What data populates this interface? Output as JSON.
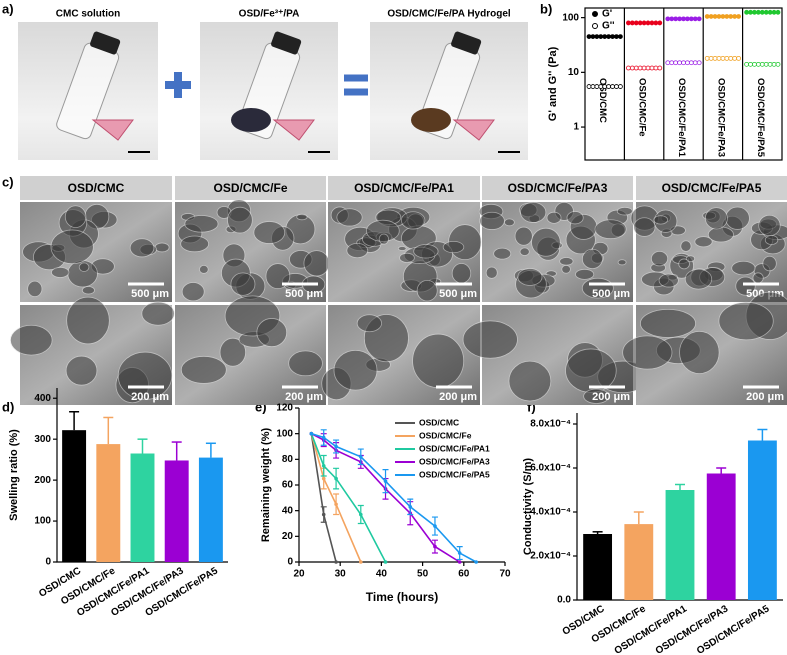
{
  "figure": {
    "panel_labels": [
      "a)",
      "b)",
      "c)",
      "d)",
      "e)",
      "f)"
    ],
    "photo_captions": [
      "CMC solution",
      "OSD/Fe³⁺/PA",
      "OSD/CMC/Fe/PA Hydrogel"
    ],
    "sem_headers": [
      "OSD/CMC",
      "OSD/CMC/Fe",
      "OSD/CMC/Fe/PA1",
      "OSD/CMC/Fe/PA3",
      "OSD/CMC/Fe/PA5"
    ],
    "scale_bars": [
      "500 μm",
      "200 μm"
    ]
  },
  "chart_data": [
    {
      "type": "dot",
      "y_label": "G' and G'' (Pa)",
      "log_y": true,
      "categories": [
        "OSD/CMC",
        "OSD/CMC/Fe",
        "OSD/CMC/Fe/PA1",
        "OSD/CMC/Fe/PA3",
        "OSD/CMC/Fe/PA5"
      ],
      "colors": [
        "#000000",
        "#e8001c",
        "#9a1ee6",
        "#f0a020",
        "#20c830"
      ],
      "series": [
        {
          "name": "G'",
          "marker": "filled",
          "values": [
            45,
            80,
            95,
            105,
            125
          ]
        },
        {
          "name": "G''",
          "marker": "open",
          "values": [
            5.5,
            12,
            15,
            18,
            14
          ]
        }
      ],
      "ylim": [
        0.25,
        150
      ],
      "yticks": [
        1,
        10,
        100
      ],
      "legend": "upper-left"
    },
    {
      "type": "bar",
      "y_label": "Swelling ratio (%)",
      "categories": [
        "OSD/CMC",
        "OSD/CMC/Fe",
        "OSD/CMC/Fe/PA1",
        "OSD/CMC/Fe/PA3",
        "OSD/CMC/Fe/PA5"
      ],
      "values": [
        322,
        288,
        265,
        248,
        255
      ],
      "errors": [
        45,
        65,
        35,
        45,
        35
      ],
      "colors": [
        "#000000",
        "#f4a460",
        "#2ed3a0",
        "#9b00d3",
        "#1a98f0"
      ],
      "ylim": [
        0,
        425
      ],
      "yticks": [
        0,
        100,
        200,
        300,
        400
      ]
    },
    {
      "type": "line",
      "x_label": "Time (hours)",
      "y_label": "Remaining weight (%)",
      "series": [
        {
          "name": "OSD/CMC",
          "color": "#555555",
          "x": [
            23,
            26,
            29
          ],
          "values": [
            100,
            37,
            0
          ],
          "errors": [
            0,
            6,
            0
          ]
        },
        {
          "name": "OSD/CMC/Fe",
          "color": "#f4a460",
          "x": [
            23,
            26,
            29,
            35
          ],
          "values": [
            100,
            65,
            45,
            0
          ],
          "errors": [
            0,
            8,
            8,
            0
          ]
        },
        {
          "name": "OSD/CMC/Fe/PA1",
          "color": "#1fc9a0",
          "x": [
            23,
            26,
            29,
            35,
            41
          ],
          "values": [
            100,
            75,
            65,
            37,
            0
          ],
          "errors": [
            0,
            8,
            8,
            7,
            0
          ]
        },
        {
          "name": "OSD/CMC/Fe/PA3",
          "color": "#9b00d3",
          "x": [
            23,
            26,
            29,
            35,
            41,
            47,
            53,
            59
          ],
          "values": [
            100,
            95,
            87,
            78,
            57,
            38,
            12,
            0
          ],
          "errors": [
            0,
            5,
            6,
            5,
            8,
            9,
            5,
            0
          ]
        },
        {
          "name": "OSD/CMC/Fe/PA5",
          "color": "#1a98f0",
          "x": [
            23,
            26,
            29,
            35,
            41,
            47,
            53,
            59,
            63
          ],
          "values": [
            100,
            97,
            90,
            82,
            63,
            43,
            28,
            7,
            0
          ],
          "errors": [
            0,
            6,
            5,
            6,
            9,
            6,
            7,
            5,
            0
          ]
        }
      ],
      "xlim": [
        20,
        70
      ],
      "xticks": [
        20,
        30,
        40,
        50,
        60,
        70
      ],
      "ylim": [
        0,
        120
      ],
      "yticks": [
        0,
        20,
        40,
        60,
        80,
        100,
        120
      ],
      "legend": "upper-right"
    },
    {
      "type": "bar",
      "y_label": "Conductivity (S/m)",
      "categories": [
        "OSD/CMC",
        "OSD/CMC/Fe",
        "OSD/CMC/Fe/PA1",
        "OSD/CMC/Fe/PA3",
        "OSD/CMC/Fe/PA5"
      ],
      "values": [
        0.0003,
        0.000345,
        0.0005,
        0.000575,
        0.000725
      ],
      "errors": [
        1e-05,
        5.5e-05,
        2.5e-05,
        2.5e-05,
        5e-05
      ],
      "colors": [
        "#000000",
        "#f4a460",
        "#2ed3a0",
        "#9b00d3",
        "#1a98f0"
      ],
      "ylim": [
        0,
        0.00085
      ],
      "yticks": [
        {
          "value": 0,
          "label": "0.0"
        },
        {
          "value": 0.0002,
          "label": "2.0x10⁻⁴"
        },
        {
          "value": 0.0004,
          "label": "4.0x10⁻⁴"
        },
        {
          "value": 0.0006,
          "label": "6.0x10⁻⁴"
        },
        {
          "value": 0.0008,
          "label": "8.0x10⁻⁴"
        }
      ]
    }
  ]
}
